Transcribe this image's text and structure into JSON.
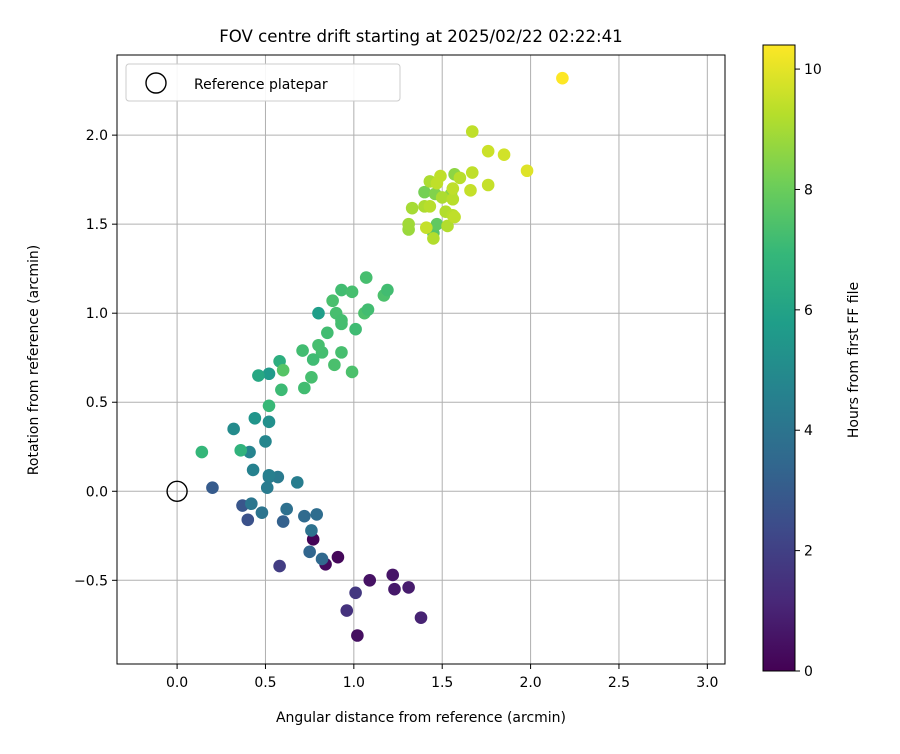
{
  "chart_data": {
    "type": "scatter",
    "title": "FOV centre drift starting at 2025/02/22 02:22:41",
    "xlabel": "Angular distance from reference (arcmin)",
    "ylabel": "Rotation from reference (arcmin)",
    "xlim": [
      -0.34,
      3.1
    ],
    "ylim": [
      -0.97,
      2.45
    ],
    "xticks": [
      "0.0",
      "0.5",
      "1.0",
      "1.5",
      "2.0",
      "2.5",
      "3.0"
    ],
    "yticks": [
      "−0.5",
      "0.0",
      "0.5",
      "1.0",
      "1.5",
      "2.0"
    ],
    "grid": true,
    "legend": {
      "placement": "top-left",
      "label": "Reference platepar"
    },
    "reference_point": {
      "x": 0.0,
      "y": 0.0
    },
    "colorbar": {
      "label": "Hours from first FF file",
      "range": [
        0,
        10.4
      ],
      "ticks": [
        "0",
        "2",
        "4",
        "6",
        "8",
        "10"
      ],
      "colormap": "viridis"
    },
    "colors": {
      "viridis": [
        "#440154",
        "#482878",
        "#3e4989",
        "#31688e",
        "#26828e",
        "#1f9e89",
        "#35b779",
        "#6ece58",
        "#b5de2b",
        "#fde725"
      ]
    },
    "points": [
      {
        "x": 0.77,
        "y": -0.27,
        "h": 0.1
      },
      {
        "x": 0.91,
        "y": -0.37,
        "h": 0.2
      },
      {
        "x": 0.84,
        "y": -0.41,
        "h": 0.3
      },
      {
        "x": 1.02,
        "y": -0.81,
        "h": 0.4
      },
      {
        "x": 1.09,
        "y": -0.5,
        "h": 0.5
      },
      {
        "x": 1.22,
        "y": -0.47,
        "h": 0.6
      },
      {
        "x": 1.23,
        "y": -0.55,
        "h": 0.7
      },
      {
        "x": 1.31,
        "y": -0.54,
        "h": 0.8
      },
      {
        "x": 1.38,
        "y": -0.71,
        "h": 1.0
      },
      {
        "x": 0.96,
        "y": -0.67,
        "h": 1.5
      },
      {
        "x": 1.01,
        "y": -0.57,
        "h": 1.7
      },
      {
        "x": 0.58,
        "y": -0.42,
        "h": 1.9
      },
      {
        "x": 0.4,
        "y": -0.16,
        "h": 2.6
      },
      {
        "x": 0.37,
        "y": -0.08,
        "h": 2.8
      },
      {
        "x": 0.2,
        "y": 0.02,
        "h": 3.0
      },
      {
        "x": 0.6,
        "y": -0.17,
        "h": 3.2
      },
      {
        "x": 0.75,
        "y": -0.34,
        "h": 3.4
      },
      {
        "x": 0.82,
        "y": -0.38,
        "h": 3.5
      },
      {
        "x": 0.72,
        "y": -0.14,
        "h": 3.6
      },
      {
        "x": 0.79,
        "y": -0.13,
        "h": 3.7
      },
      {
        "x": 0.62,
        "y": -0.1,
        "h": 3.8
      },
      {
        "x": 0.76,
        "y": -0.22,
        "h": 3.9
      },
      {
        "x": 0.48,
        "y": -0.12,
        "h": 4.0
      },
      {
        "x": 0.42,
        "y": -0.07,
        "h": 4.1
      },
      {
        "x": 0.52,
        "y": 0.08,
        "h": 4.2
      },
      {
        "x": 0.57,
        "y": 0.08,
        "h": 4.25
      },
      {
        "x": 0.51,
        "y": 0.02,
        "h": 4.3
      },
      {
        "x": 0.68,
        "y": 0.05,
        "h": 4.4
      },
      {
        "x": 0.52,
        "y": 0.09,
        "h": 4.5
      },
      {
        "x": 0.43,
        "y": 0.12,
        "h": 4.6
      },
      {
        "x": 0.41,
        "y": 0.22,
        "h": 4.7
      },
      {
        "x": 0.5,
        "y": 0.28,
        "h": 4.8
      },
      {
        "x": 0.32,
        "y": 0.35,
        "h": 5.0
      },
      {
        "x": 0.52,
        "y": 0.39,
        "h": 5.2
      },
      {
        "x": 0.44,
        "y": 0.41,
        "h": 5.4
      },
      {
        "x": 0.52,
        "y": 0.66,
        "h": 5.6
      },
      {
        "x": 0.8,
        "y": 1.0,
        "h": 5.8
      },
      {
        "x": 0.46,
        "y": 0.65,
        "h": 6.2
      },
      {
        "x": 0.58,
        "y": 0.73,
        "h": 6.5
      },
      {
        "x": 0.36,
        "y": 0.23,
        "h": 6.7
      },
      {
        "x": 0.14,
        "y": 0.22,
        "h": 6.9
      },
      {
        "x": 0.52,
        "y": 0.48,
        "h": 7.0
      },
      {
        "x": 0.59,
        "y": 0.57,
        "h": 7.1
      },
      {
        "x": 0.72,
        "y": 0.58,
        "h": 7.2
      },
      {
        "x": 0.76,
        "y": 0.64,
        "h": 7.3
      },
      {
        "x": 0.99,
        "y": 0.67,
        "h": 7.4
      },
      {
        "x": 0.93,
        "y": 0.78,
        "h": 7.3
      },
      {
        "x": 0.71,
        "y": 0.79,
        "h": 7.2
      },
      {
        "x": 0.89,
        "y": 0.71,
        "h": 7.35
      },
      {
        "x": 0.82,
        "y": 0.78,
        "h": 7.25
      },
      {
        "x": 0.77,
        "y": 0.74,
        "h": 7.15
      },
      {
        "x": 0.8,
        "y": 0.82,
        "h": 7.3
      },
      {
        "x": 0.85,
        "y": 0.89,
        "h": 7.2
      },
      {
        "x": 0.93,
        "y": 0.94,
        "h": 7.25
      },
      {
        "x": 0.9,
        "y": 1.0,
        "h": 7.3
      },
      {
        "x": 1.01,
        "y": 0.91,
        "h": 7.15
      },
      {
        "x": 0.88,
        "y": 1.07,
        "h": 7.35
      },
      {
        "x": 0.93,
        "y": 1.13,
        "h": 7.2
      },
      {
        "x": 0.99,
        "y": 1.12,
        "h": 7.3
      },
      {
        "x": 1.06,
        "y": 1.0,
        "h": 7.4
      },
      {
        "x": 1.08,
        "y": 1.02,
        "h": 7.2
      },
      {
        "x": 1.07,
        "y": 1.2,
        "h": 7.3
      },
      {
        "x": 1.17,
        "y": 1.1,
        "h": 7.4
      },
      {
        "x": 1.19,
        "y": 1.13,
        "h": 7.2
      },
      {
        "x": 0.6,
        "y": 0.68,
        "h": 7.6
      },
      {
        "x": 0.93,
        "y": 0.96,
        "h": 7.25
      },
      {
        "x": 1.45,
        "y": 1.45,
        "h": 7.6
      },
      {
        "x": 1.47,
        "y": 1.5,
        "h": 7.8
      },
      {
        "x": 1.4,
        "y": 1.68,
        "h": 8.2
      },
      {
        "x": 1.46,
        "y": 1.67,
        "h": 8.4
      },
      {
        "x": 1.55,
        "y": 1.67,
        "h": 8.5
      },
      {
        "x": 1.57,
        "y": 1.78,
        "h": 8.6
      },
      {
        "x": 1.31,
        "y": 1.47,
        "h": 8.8
      },
      {
        "x": 1.31,
        "y": 1.5,
        "h": 8.9
      },
      {
        "x": 1.33,
        "y": 1.59,
        "h": 9.0
      },
      {
        "x": 1.4,
        "y": 1.6,
        "h": 9.1
      },
      {
        "x": 1.43,
        "y": 1.74,
        "h": 9.1
      },
      {
        "x": 1.45,
        "y": 1.42,
        "h": 9.2
      },
      {
        "x": 1.5,
        "y": 1.65,
        "h": 9.1
      },
      {
        "x": 1.52,
        "y": 1.57,
        "h": 9.2
      },
      {
        "x": 1.56,
        "y": 1.55,
        "h": 9.3
      },
      {
        "x": 1.53,
        "y": 1.49,
        "h": 9.2
      },
      {
        "x": 1.49,
        "y": 1.77,
        "h": 9.4
      },
      {
        "x": 1.56,
        "y": 1.64,
        "h": 9.3
      },
      {
        "x": 1.57,
        "y": 1.54,
        "h": 9.4
      },
      {
        "x": 1.6,
        "y": 1.76,
        "h": 9.3
      },
      {
        "x": 1.56,
        "y": 1.7,
        "h": 9.4
      },
      {
        "x": 1.41,
        "y": 1.48,
        "h": 9.5
      },
      {
        "x": 1.43,
        "y": 1.6,
        "h": 9.3
      },
      {
        "x": 1.47,
        "y": 1.73,
        "h": 9.4
      },
      {
        "x": 1.67,
        "y": 2.02,
        "h": 9.4
      },
      {
        "x": 1.66,
        "y": 1.69,
        "h": 9.5
      },
      {
        "x": 1.67,
        "y": 1.79,
        "h": 9.4
      },
      {
        "x": 1.76,
        "y": 1.72,
        "h": 9.5
      },
      {
        "x": 1.76,
        "y": 1.91,
        "h": 9.6
      },
      {
        "x": 1.85,
        "y": 1.89,
        "h": 9.7
      },
      {
        "x": 1.98,
        "y": 1.8,
        "h": 9.9
      },
      {
        "x": 2.18,
        "y": 2.32,
        "h": 10.4
      }
    ]
  }
}
